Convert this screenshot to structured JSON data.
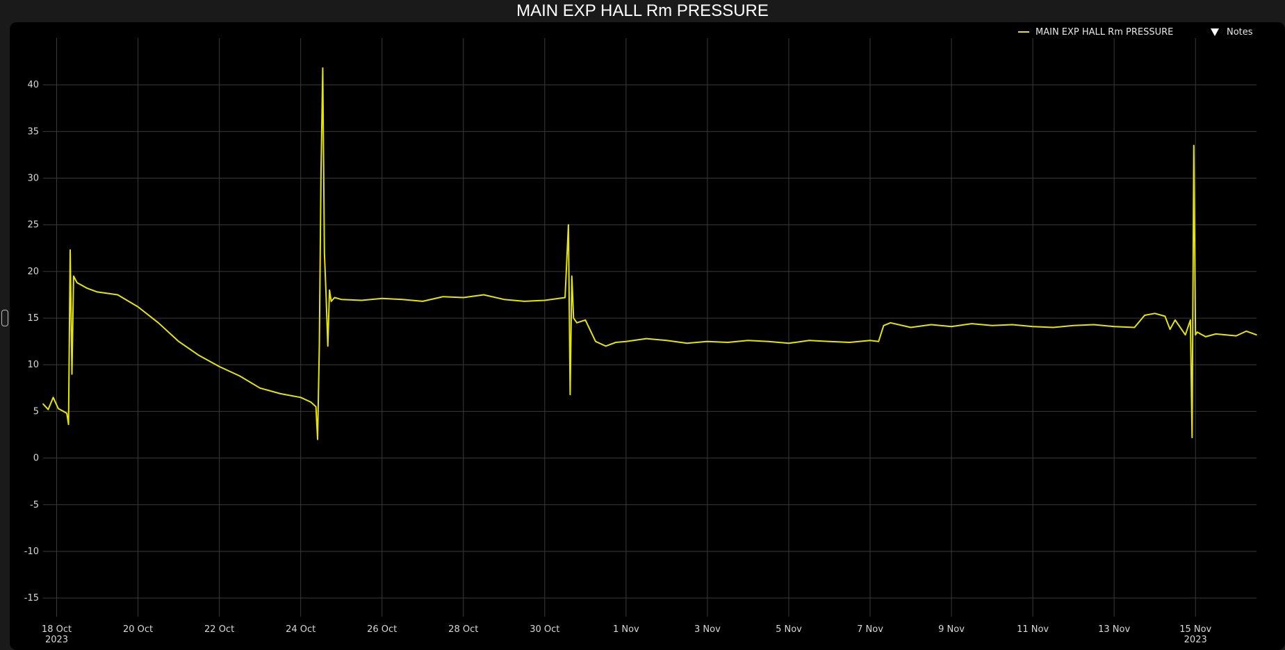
{
  "window": {
    "title": "MAIN EXP HALL Rm PRESSURE"
  },
  "legend": {
    "series_label": "MAIN EXP HALL Rm PRESSURE",
    "notes_label": "Notes",
    "notes_icon": "triangle-down-icon"
  },
  "colors": {
    "background": "#000000",
    "series": "#e6e600",
    "grid": "#3a3a3a",
    "text": "#d8d8d8"
  },
  "chart_data": {
    "type": "line",
    "title": "MAIN EXP HALL Rm PRESSURE",
    "xlabel": "",
    "ylabel": "",
    "xlim": [
      "2023-10-17T16:00",
      "2023-11-16T12:00"
    ],
    "ylim": [
      -17,
      45
    ],
    "yticks": [
      -15,
      -10,
      -5,
      0,
      5,
      10,
      15,
      20,
      25,
      30,
      35,
      40
    ],
    "xticks": [
      {
        "date": "2023-10-18",
        "label": "18 Oct",
        "sublabel": "2023"
      },
      {
        "date": "2023-10-20",
        "label": "20 Oct"
      },
      {
        "date": "2023-10-22",
        "label": "22 Oct"
      },
      {
        "date": "2023-10-24",
        "label": "24 Oct"
      },
      {
        "date": "2023-10-26",
        "label": "26 Oct"
      },
      {
        "date": "2023-10-28",
        "label": "28 Oct"
      },
      {
        "date": "2023-10-30",
        "label": "30 Oct"
      },
      {
        "date": "2023-11-01",
        "label": "1 Nov"
      },
      {
        "date": "2023-11-03",
        "label": "3 Nov"
      },
      {
        "date": "2023-11-05",
        "label": "5 Nov"
      },
      {
        "date": "2023-11-07",
        "label": "7 Nov"
      },
      {
        "date": "2023-11-09",
        "label": "9 Nov"
      },
      {
        "date": "2023-11-11",
        "label": "11 Nov"
      },
      {
        "date": "2023-11-13",
        "label": "13 Nov"
      },
      {
        "date": "2023-11-15",
        "label": "15 Nov",
        "sublabel": "2023"
      }
    ],
    "grid": true,
    "legend_position": "top-right",
    "series": [
      {
        "name": "MAIN EXP HALL Rm PRESSURE",
        "color": "#e6e600",
        "x": [
          "2023-10-17T16:00",
          "2023-10-17T19:00",
          "2023-10-17T22:00",
          "2023-10-18T01:00",
          "2023-10-18T04:00",
          "2023-10-18T06:00",
          "2023-10-18T07:00",
          "2023-10-18T08:00",
          "2023-10-18T09:00",
          "2023-10-18T10:00",
          "2023-10-18T12:00",
          "2023-10-18T18:00",
          "2023-10-19T00:00",
          "2023-10-19T12:00",
          "2023-10-20T00:00",
          "2023-10-20T12:00",
          "2023-10-21T00:00",
          "2023-10-21T12:00",
          "2023-10-22T00:00",
          "2023-10-22T12:00",
          "2023-10-23T00:00",
          "2023-10-23T12:00",
          "2023-10-24T00:00",
          "2023-10-24T06:00",
          "2023-10-24T09:00",
          "2023-10-24T10:00",
          "2023-10-24T11:00",
          "2023-10-24T12:00",
          "2023-10-24T13:00",
          "2023-10-24T14:00",
          "2023-10-24T15:00",
          "2023-10-24T16:00",
          "2023-10-24T17:00",
          "2023-10-24T18:00",
          "2023-10-24T20:00",
          "2023-10-25T00:00",
          "2023-10-25T12:00",
          "2023-10-26T00:00",
          "2023-10-26T12:00",
          "2023-10-27T00:00",
          "2023-10-27T12:00",
          "2023-10-28T00:00",
          "2023-10-28T12:00",
          "2023-10-29T00:00",
          "2023-10-29T12:00",
          "2023-10-30T00:00",
          "2023-10-30T12:00",
          "2023-10-30T14:00",
          "2023-10-30T15:00",
          "2023-10-30T16:00",
          "2023-10-30T17:00",
          "2023-10-30T19:00",
          "2023-10-31T00:00",
          "2023-10-31T06:00",
          "2023-10-31T12:00",
          "2023-10-31T18:00",
          "2023-11-01T00:00",
          "2023-11-01T12:00",
          "2023-11-02T00:00",
          "2023-11-02T12:00",
          "2023-11-03T00:00",
          "2023-11-03T12:00",
          "2023-11-04T00:00",
          "2023-11-04T12:00",
          "2023-11-05T00:00",
          "2023-11-05T12:00",
          "2023-11-06T00:00",
          "2023-11-06T12:00",
          "2023-11-07T00:00",
          "2023-11-07T05:00",
          "2023-11-07T08:00",
          "2023-11-07T12:00",
          "2023-11-08T00:00",
          "2023-11-08T12:00",
          "2023-11-09T00:00",
          "2023-11-09T12:00",
          "2023-11-10T00:00",
          "2023-11-10T12:00",
          "2023-11-11T00:00",
          "2023-11-11T12:00",
          "2023-11-12T00:00",
          "2023-11-12T12:00",
          "2023-11-13T00:00",
          "2023-11-13T12:00",
          "2023-11-13T18:00",
          "2023-11-14T00:00",
          "2023-11-14T06:00",
          "2023-11-14T09:00",
          "2023-11-14T12:00",
          "2023-11-14T18:00",
          "2023-11-14T21:00",
          "2023-11-14T22:00",
          "2023-11-14T23:00",
          "2023-11-15T00:00",
          "2023-11-15T01:00",
          "2023-11-15T06:00",
          "2023-11-15T12:00",
          "2023-11-16T00:00",
          "2023-11-16T06:00",
          "2023-11-16T12:00"
        ],
        "y": [
          5.8,
          5.2,
          6.5,
          5.3,
          5.0,
          4.8,
          3.6,
          22.3,
          9.0,
          19.5,
          18.8,
          18.2,
          17.8,
          17.5,
          16.2,
          14.5,
          12.5,
          11.0,
          9.8,
          8.8,
          7.5,
          6.9,
          6.5,
          6.0,
          5.5,
          2.0,
          12.0,
          30.5,
          41.8,
          22.0,
          17.5,
          12.0,
          18.0,
          16.8,
          17.2,
          17.0,
          16.9,
          17.1,
          17.0,
          16.8,
          17.3,
          17.2,
          17.5,
          17.0,
          16.8,
          16.9,
          17.2,
          25.0,
          6.8,
          19.5,
          15.0,
          14.5,
          14.8,
          12.5,
          12.0,
          12.4,
          12.5,
          12.8,
          12.6,
          12.3,
          12.5,
          12.4,
          12.6,
          12.5,
          12.3,
          12.6,
          12.5,
          12.4,
          12.6,
          12.5,
          14.2,
          14.5,
          14.0,
          14.3,
          14.1,
          14.4,
          14.2,
          14.3,
          14.1,
          14.0,
          14.2,
          14.3,
          14.1,
          14.0,
          15.3,
          15.5,
          15.2,
          13.8,
          14.8,
          13.2,
          14.8,
          2.2,
          33.5,
          13.2,
          13.5,
          13.0,
          13.3,
          13.1,
          13.6,
          13.2
        ]
      }
    ]
  }
}
